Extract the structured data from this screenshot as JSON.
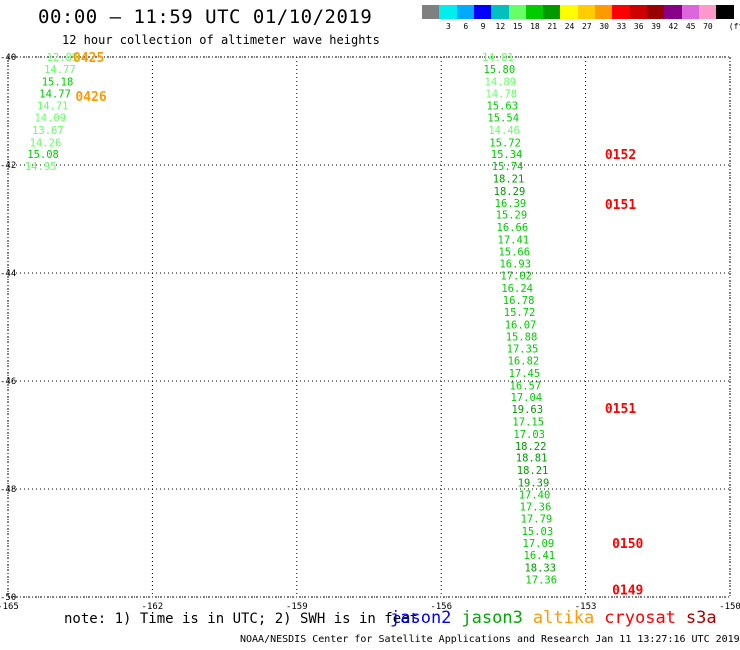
{
  "header": {
    "title": "00:00 – 11:59 UTC 01/10/2019",
    "subtitle": "12 hour collection of altimeter wave heights"
  },
  "color_scale": {
    "unit_label": "(ft)",
    "bins": [
      {
        "label": "",
        "color": "#808080"
      },
      {
        "label": "3",
        "color": "#00eeee"
      },
      {
        "label": "6",
        "color": "#00aaff"
      },
      {
        "label": "9",
        "color": "#0000ff"
      },
      {
        "label": "12",
        "color": "#00c0c0"
      },
      {
        "label": "15",
        "color": "#66ff66"
      },
      {
        "label": "18",
        "color": "#00cc00"
      },
      {
        "label": "21",
        "color": "#009900"
      },
      {
        "label": "24",
        "color": "#ffff00"
      },
      {
        "label": "27",
        "color": "#ffcc00"
      },
      {
        "label": "30",
        "color": "#ff9900"
      },
      {
        "label": "33",
        "color": "#ff0000"
      },
      {
        "label": "36",
        "color": "#cc0000"
      },
      {
        "label": "39",
        "color": "#990000"
      },
      {
        "label": "42",
        "color": "#880088"
      },
      {
        "label": "45",
        "color": "#dd66dd"
      },
      {
        "label": "70",
        "color": "#ff99cc"
      },
      {
        "label": "",
        "color": "#000000"
      }
    ]
  },
  "map": {
    "lon_range": [
      -165,
      -150
    ],
    "lat_range": [
      -50,
      -40
    ],
    "y_ticks": [
      {
        "label": "-40",
        "value": -40
      },
      {
        "label": "-42",
        "value": -42
      },
      {
        "label": "-44",
        "value": -44
      },
      {
        "label": "-46",
        "value": -46
      },
      {
        "label": "-48",
        "value": -48
      },
      {
        "label": "-50",
        "value": -50
      }
    ],
    "x_ticks": [
      {
        "label": "-165",
        "value": -165
      },
      {
        "label": "-162",
        "value": -162
      },
      {
        "label": "-159",
        "value": -159
      },
      {
        "label": "-156",
        "value": -156
      },
      {
        "label": "-153",
        "value": -153
      },
      {
        "label": "-150",
        "value": -150
      }
    ],
    "grid": "dotted"
  },
  "tracks": [
    {
      "satellite": "altika",
      "time_labels": [
        {
          "text": "0425",
          "lon": -163.65,
          "lat": -40.0,
          "color": "#ff9900"
        },
        {
          "text": "0426",
          "lon": -163.6,
          "lat": -40.72,
          "color": "#ff9900"
        }
      ],
      "points": [
        {
          "swh": "12.89",
          "lon": -164.2,
          "lat": -40.0,
          "color": "#66ff66"
        },
        {
          "swh": "14.77",
          "lon": -164.25,
          "lat": -40.22,
          "color": "#66ff66"
        },
        {
          "swh": "15.18",
          "lon": -164.3,
          "lat": -40.45,
          "color": "#00cc00"
        },
        {
          "swh": "14.77",
          "lon": -164.35,
          "lat": -40.68,
          "color": "#00cc00"
        },
        {
          "swh": "14.71",
          "lon": -164.4,
          "lat": -40.9,
          "color": "#66ff66"
        },
        {
          "swh": "14.09",
          "lon": -164.45,
          "lat": -41.12,
          "color": "#66ff66"
        },
        {
          "swh": "13.67",
          "lon": -164.5,
          "lat": -41.35,
          "color": "#66ff66"
        },
        {
          "swh": "14.26",
          "lon": -164.55,
          "lat": -41.58,
          "color": "#66ff66"
        },
        {
          "swh": "15.08",
          "lon": -164.6,
          "lat": -41.8,
          "color": "#00cc00"
        },
        {
          "swh": "14.95",
          "lon": -164.65,
          "lat": -42.02,
          "color": "#66ff66"
        }
      ]
    },
    {
      "satellite": "jason3",
      "time_labels": [
        {
          "text": "0152",
          "lon": -152.6,
          "lat": -41.8,
          "color": "#ff0000"
        },
        {
          "text": "0151",
          "lon": -152.6,
          "lat": -42.72,
          "color": "#ff0000"
        },
        {
          "text": "0151",
          "lon": -152.6,
          "lat": -46.5,
          "color": "#ff0000"
        },
        {
          "text": "0150",
          "lon": -152.45,
          "lat": -49.0,
          "color": "#ff0000"
        },
        {
          "text": "0149",
          "lon": -152.45,
          "lat": -49.86,
          "color": "#ff0000"
        }
      ],
      "points": [
        {
          "swh": "14.81",
          "lon": -155.15,
          "lat": -40.0,
          "color": "#66ff66"
        },
        {
          "swh": "15.80",
          "lon": -155.12,
          "lat": -40.22,
          "color": "#00cc00"
        },
        {
          "swh": "14.89",
          "lon": -155.1,
          "lat": -40.45,
          "color": "#66ff66"
        },
        {
          "swh": "14.78",
          "lon": -155.08,
          "lat": -40.68,
          "color": "#66ff66"
        },
        {
          "swh": "15.63",
          "lon": -155.06,
          "lat": -40.9,
          "color": "#00cc00"
        },
        {
          "swh": "15.54",
          "lon": -155.04,
          "lat": -41.12,
          "color": "#00cc00"
        },
        {
          "swh": "14.46",
          "lon": -155.02,
          "lat": -41.35,
          "color": "#66ff66"
        },
        {
          "swh": "15.72",
          "lon": -155.0,
          "lat": -41.58,
          "color": "#00cc00"
        },
        {
          "swh": "15.34",
          "lon": -154.97,
          "lat": -41.8,
          "color": "#00cc00"
        },
        {
          "swh": "15.74",
          "lon": -154.95,
          "lat": -42.02,
          "color": "#00cc00"
        },
        {
          "swh": "18.21",
          "lon": -154.93,
          "lat": -42.25,
          "color": "#009900"
        },
        {
          "swh": "18.29",
          "lon": -154.91,
          "lat": -42.48,
          "color": "#009900"
        },
        {
          "swh": "16.39",
          "lon": -154.89,
          "lat": -42.7,
          "color": "#00cc00"
        },
        {
          "swh": "15.29",
          "lon": -154.87,
          "lat": -42.92,
          "color": "#00cc00"
        },
        {
          "swh": "16.66",
          "lon": -154.85,
          "lat": -43.15,
          "color": "#00cc00"
        },
        {
          "swh": "17.41",
          "lon": -154.83,
          "lat": -43.38,
          "color": "#00cc00"
        },
        {
          "swh": "15.66",
          "lon": -154.81,
          "lat": -43.6,
          "color": "#00cc00"
        },
        {
          "swh": "16.93",
          "lon": -154.79,
          "lat": -43.82,
          "color": "#00cc00"
        },
        {
          "swh": "17.02",
          "lon": -154.77,
          "lat": -44.05,
          "color": "#00cc00"
        },
        {
          "swh": "16.24",
          "lon": -154.75,
          "lat": -44.28,
          "color": "#00cc00"
        },
        {
          "swh": "16.78",
          "lon": -154.72,
          "lat": -44.5,
          "color": "#00cc00"
        },
        {
          "swh": "15.72",
          "lon": -154.7,
          "lat": -44.72,
          "color": "#00cc00"
        },
        {
          "swh": "16.07",
          "lon": -154.68,
          "lat": -44.95,
          "color": "#00cc00"
        },
        {
          "swh": "15.88",
          "lon": -154.66,
          "lat": -45.18,
          "color": "#00cc00"
        },
        {
          "swh": "17.35",
          "lon": -154.64,
          "lat": -45.4,
          "color": "#00cc00"
        },
        {
          "swh": "16.82",
          "lon": -154.62,
          "lat": -45.62,
          "color": "#00cc00"
        },
        {
          "swh": "17.45",
          "lon": -154.6,
          "lat": -45.85,
          "color": "#00cc00"
        },
        {
          "swh": "16.57",
          "lon": -154.58,
          "lat": -46.08,
          "color": "#00cc00"
        },
        {
          "swh": "17.04",
          "lon": -154.56,
          "lat": -46.3,
          "color": "#00cc00"
        },
        {
          "swh": "19.63",
          "lon": -154.54,
          "lat": -46.52,
          "color": "#009900"
        },
        {
          "swh": "17.15",
          "lon": -154.52,
          "lat": -46.75,
          "color": "#00cc00"
        },
        {
          "swh": "17.03",
          "lon": -154.5,
          "lat": -46.98,
          "color": "#00cc00"
        },
        {
          "swh": "18.22",
          "lon": -154.47,
          "lat": -47.2,
          "color": "#009900"
        },
        {
          "swh": "18.81",
          "lon": -154.45,
          "lat": -47.42,
          "color": "#009900"
        },
        {
          "swh": "18.21",
          "lon": -154.43,
          "lat": -47.65,
          "color": "#009900"
        },
        {
          "swh": "19.39",
          "lon": -154.41,
          "lat": -47.88,
          "color": "#009900"
        },
        {
          "swh": "17.40",
          "lon": -154.39,
          "lat": -48.1,
          "color": "#00cc00"
        },
        {
          "swh": "17.36",
          "lon": -154.37,
          "lat": -48.32,
          "color": "#00cc00"
        },
        {
          "swh": "17.79",
          "lon": -154.35,
          "lat": -48.55,
          "color": "#00cc00"
        },
        {
          "swh": "15.03",
          "lon": -154.33,
          "lat": -48.78,
          "color": "#00cc00"
        },
        {
          "swh": "17.09",
          "lon": -154.31,
          "lat": -49.0,
          "color": "#00cc00"
        },
        {
          "swh": "16.41",
          "lon": -154.29,
          "lat": -49.22,
          "color": "#00cc00"
        },
        {
          "swh": "18.33",
          "lon": -154.27,
          "lat": -49.45,
          "color": "#009900"
        },
        {
          "swh": "17.36",
          "lon": -154.25,
          "lat": -49.68,
          "color": "#00cc00"
        }
      ]
    }
  ],
  "footer": {
    "note": "note: 1) Time is in UTC; 2) SWH is in feet",
    "satellites": [
      {
        "name": "jason2",
        "color": "#0000ff"
      },
      {
        "name": "jason3",
        "color": "#00aa00"
      },
      {
        "name": "altika",
        "color": "#ff9900"
      },
      {
        "name": "cryosat",
        "color": "#ff0000"
      },
      {
        "name": "s3a",
        "color": "#aa0000"
      }
    ],
    "credit": "NOAA/NESDIS Center for Satellite Applications and Research    Jan 11 13:27:16 UTC 2019"
  }
}
